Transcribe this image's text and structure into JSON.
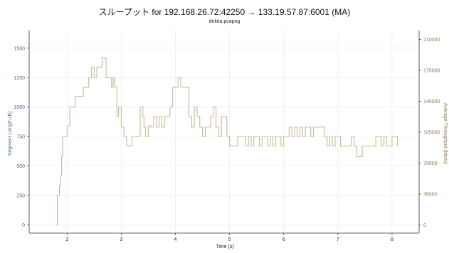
{
  "title": "スループット for 192.168.26.72:42250 → 133.19.57.87:6001 (MA)",
  "subtitle": "dekita.pcapng",
  "colors": {
    "series": "#c8b896",
    "left_axis_text": "#4a6a9a",
    "right_axis_text": "#8a7a4a",
    "grid": "#e6e6e6",
    "axis": "#333333"
  },
  "chart_data": {
    "type": "line",
    "title": "スループット for 192.168.26.72:42250 → 133.19.57.87:6001 (MA)",
    "subtitle": "dekita.pcapng",
    "xlabel": "Time (s)",
    "ylabel": "Segment Length (B)",
    "y2label": "Average Throughput (bits/s)",
    "xlim": [
      1.3,
      8.5
    ],
    "ylim": [
      -70,
      1650
    ],
    "y2lim": [
      -9333,
      220000
    ],
    "xticks": [
      "2",
      "3",
      "4",
      "5",
      "6",
      "7",
      "8"
    ],
    "yticks": [
      "0",
      "250",
      "500",
      "750",
      "1000",
      "1250",
      "1500"
    ],
    "y2ticks": [
      "0",
      "35000",
      "70000",
      "105000",
      "140000",
      "175000",
      "210000"
    ],
    "grid": true,
    "series": [
      {
        "step": "post",
        "x": [
          1.8,
          1.82,
          1.86,
          1.88,
          1.9,
          1.92,
          1.93,
          1.95,
          2.0,
          2.05,
          2.1,
          2.15,
          2.3,
          2.4,
          2.45,
          2.5,
          2.55,
          2.6,
          2.65,
          2.7,
          2.72,
          2.82,
          2.85,
          2.88,
          2.92,
          2.95,
          3.0,
          3.05,
          3.1,
          3.15,
          3.2,
          3.3,
          3.35,
          3.4,
          3.42,
          3.45,
          3.5,
          3.55,
          3.6,
          3.65,
          3.7,
          3.72,
          3.75,
          3.8,
          3.85,
          3.9,
          3.95,
          4.0,
          4.05,
          4.1,
          4.15,
          4.2,
          4.25,
          4.3,
          4.35,
          4.4,
          4.45,
          4.5,
          4.55,
          4.6,
          4.65,
          4.7,
          4.75,
          4.8,
          4.85,
          4.9,
          4.95,
          5.0,
          5.05,
          5.1,
          5.15,
          5.2,
          5.25,
          5.3,
          5.35,
          5.4,
          5.45,
          5.5,
          5.55,
          5.6,
          5.65,
          5.7,
          5.75,
          5.8,
          5.85,
          5.9,
          5.95,
          6.0,
          6.05,
          6.1,
          6.15,
          6.2,
          6.25,
          6.3,
          6.35,
          6.4,
          6.45,
          6.5,
          6.55,
          6.6,
          6.65,
          6.7,
          6.75,
          6.8,
          6.85,
          6.9,
          6.95,
          7.0,
          7.05,
          7.1,
          7.15,
          7.2,
          7.25,
          7.3,
          7.35,
          7.4,
          7.45,
          7.5,
          7.55,
          7.6,
          7.65,
          7.7,
          7.75,
          7.8,
          7.85,
          7.9,
          7.95,
          8.0,
          8.05,
          8.1
        ],
        "values": [
          0,
          250,
          330,
          420,
          580,
          750,
          750,
          750,
          840,
          1000,
          1000,
          1090,
          1170,
          1250,
          1340,
          1250,
          1340,
          1340,
          1420,
          1420,
          1250,
          1170,
          1250,
          1170,
          920,
          1000,
          830,
          750,
          670,
          670,
          750,
          750,
          1000,
          920,
          830,
          750,
          840,
          830,
          920,
          830,
          920,
          920,
          830,
          920,
          920,
          1000,
          1170,
          1170,
          1250,
          1170,
          1170,
          1170,
          920,
          830,
          1000,
          920,
          830,
          750,
          830,
          830,
          920,
          1000,
          830,
          750,
          920,
          920,
          750,
          670,
          670,
          670,
          750,
          750,
          750,
          670,
          750,
          670,
          750,
          750,
          670,
          750,
          750,
          670,
          750,
          670,
          750,
          750,
          670,
          750,
          750,
          830,
          750,
          830,
          750,
          830,
          750,
          830,
          830,
          750,
          830,
          830,
          830,
          830,
          750,
          670,
          750,
          670,
          750,
          750,
          670,
          670,
          670,
          670,
          750,
          670,
          580,
          580,
          670,
          670,
          670,
          670,
          670,
          750,
          750,
          670,
          750,
          670,
          670,
          750,
          750,
          670
        ]
      }
    ]
  }
}
